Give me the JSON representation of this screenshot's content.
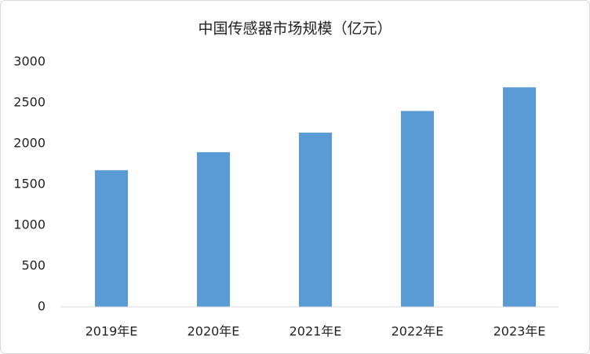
{
  "chart_data": {
    "type": "bar",
    "title": "中国传感器市场规模（亿元）",
    "categories": [
      "2019年E",
      "2020年E",
      "2021年E",
      "2022年E",
      "2023年E"
    ],
    "values": [
      1675,
      1895,
      2135,
      2400,
      2690
    ],
    "color": "#5b9bd5",
    "ylim": [
      0,
      3000
    ],
    "yticks": [
      0,
      500,
      1000,
      1500,
      2000,
      2500,
      3000
    ],
    "grid": false
  }
}
